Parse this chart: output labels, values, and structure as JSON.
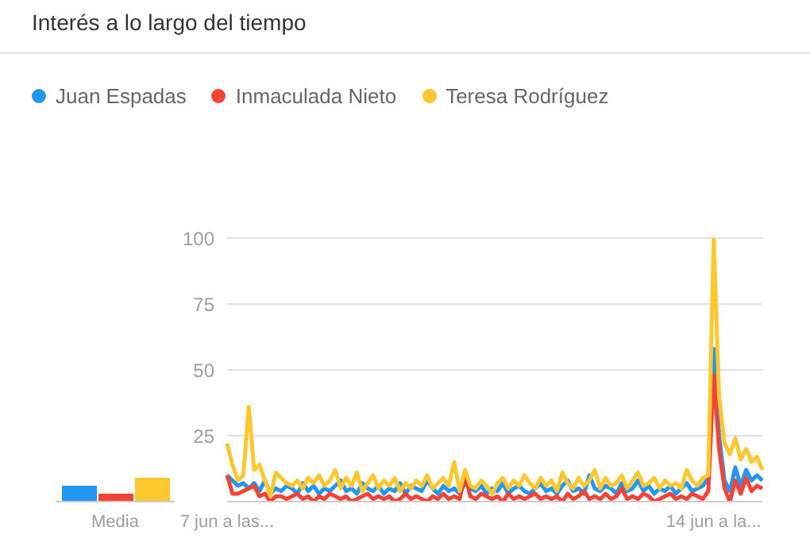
{
  "chart_data": [
    {
      "type": "bar",
      "categories": [
        "Media"
      ],
      "ylim": [
        0,
        100
      ],
      "tick_labels": "x",
      "series": [
        {
          "color": "#2196f3",
          "values": [
            6
          ]
        },
        {
          "color": "#f44336",
          "values": [
            3
          ]
        },
        {
          "color": "#fdc72e",
          "values": [
            9
          ]
        }
      ]
    },
    {
      "type": "line",
      "title": "Interés a lo largo del tiempo",
      "legend": "top left",
      "grid": "y",
      "ylim": [
        0,
        100
      ],
      "yticks": [
        {
          "value": 0,
          "label": null
        },
        25,
        50,
        75,
        100
      ],
      "categories": [
        "7 jun a las...",
        null,
        null,
        null,
        null,
        null,
        null,
        null,
        null,
        null,
        null,
        null,
        null,
        null,
        null,
        null,
        null,
        null,
        null,
        null,
        null,
        null,
        null,
        null,
        null,
        null,
        null,
        null,
        null,
        null,
        null,
        null,
        null,
        null,
        null,
        null,
        null,
        null,
        null,
        null,
        null,
        null,
        null,
        null,
        null,
        null,
        null,
        null,
        null,
        null,
        null,
        null,
        null,
        null,
        null,
        null,
        null,
        null,
        null,
        null,
        null,
        null,
        null,
        null,
        null,
        null,
        null,
        null,
        null,
        null,
        null,
        null,
        null,
        null,
        null,
        null,
        null,
        null,
        null,
        null,
        null,
        null,
        null,
        null,
        null,
        null,
        null,
        null,
        null,
        null,
        "14 jun a la...",
        null,
        null,
        null,
        null,
        null,
        null,
        null,
        null,
        null
      ],
      "series": [
        {
          "name": "Juan Espadas",
          "color": "#2196f3",
          "values": [
            10,
            8,
            6,
            7,
            5,
            7,
            4,
            8,
            3,
            5,
            4,
            6,
            5,
            3,
            7,
            4,
            6,
            3,
            5,
            4,
            6,
            8,
            4,
            5,
            3,
            7,
            5,
            4,
            6,
            3,
            5,
            4,
            7,
            3,
            6,
            5,
            4,
            8,
            5,
            3,
            6,
            4,
            5,
            3,
            7,
            5,
            4,
            6,
            3,
            5,
            4,
            7,
            3,
            5,
            6,
            4,
            3,
            5,
            7,
            4,
            5,
            3,
            6,
            8,
            4,
            5,
            3,
            10,
            5,
            4,
            6,
            5,
            3,
            7,
            4,
            5,
            8,
            4,
            6,
            3,
            5,
            4,
            6,
            3,
            5,
            7,
            4,
            5,
            6,
            9,
            58,
            25,
            8,
            4,
            13,
            6,
            12,
            8,
            10,
            8
          ]
        },
        {
          "name": "Inmaculada Nieto",
          "color": "#f44336",
          "values": [
            10,
            3,
            3,
            4,
            5,
            6,
            2,
            3,
            0,
            2,
            2,
            1,
            2,
            3,
            1,
            2,
            0,
            2,
            1,
            3,
            2,
            1,
            2,
            0,
            1,
            2,
            3,
            1,
            2,
            1,
            2,
            0,
            1,
            3,
            1,
            2,
            1,
            0,
            2,
            1,
            3,
            1,
            2,
            1,
            10,
            2,
            1,
            3,
            2,
            1,
            2,
            0,
            3,
            1,
            2,
            1,
            2,
            3,
            1,
            2,
            1,
            2,
            0,
            3,
            1,
            2,
            4,
            1,
            2,
            1,
            3,
            1,
            2,
            5,
            1,
            2,
            1,
            3,
            2,
            0,
            1,
            2,
            3,
            1,
            2,
            1,
            3,
            2,
            1,
            4,
            48,
            20,
            5,
            0,
            8,
            3,
            9,
            4,
            6,
            5
          ]
        },
        {
          "name": "Teresa Rodríguez",
          "color": "#fdc72e",
          "values": [
            22,
            14,
            8,
            10,
            36,
            12,
            14,
            8,
            2,
            11,
            9,
            7,
            6,
            8,
            5,
            9,
            7,
            10,
            6,
            8,
            12,
            5,
            9,
            6,
            11,
            4,
            7,
            10,
            5,
            8,
            6,
            9,
            4,
            7,
            5,
            8,
            6,
            10,
            5,
            7,
            9,
            6,
            15,
            4,
            12,
            6,
            5,
            8,
            6,
            3,
            7,
            9,
            5,
            8,
            6,
            10,
            7,
            5,
            9,
            6,
            8,
            4,
            11,
            7,
            5,
            9,
            6,
            8,
            12,
            5,
            9,
            6,
            7,
            10,
            5,
            8,
            11,
            6,
            7,
            9,
            5,
            8,
            6,
            7,
            5,
            12,
            8,
            6,
            9,
            10,
            100,
            40,
            22,
            18,
            24,
            16,
            20,
            15,
            17,
            12
          ]
        }
      ]
    }
  ]
}
